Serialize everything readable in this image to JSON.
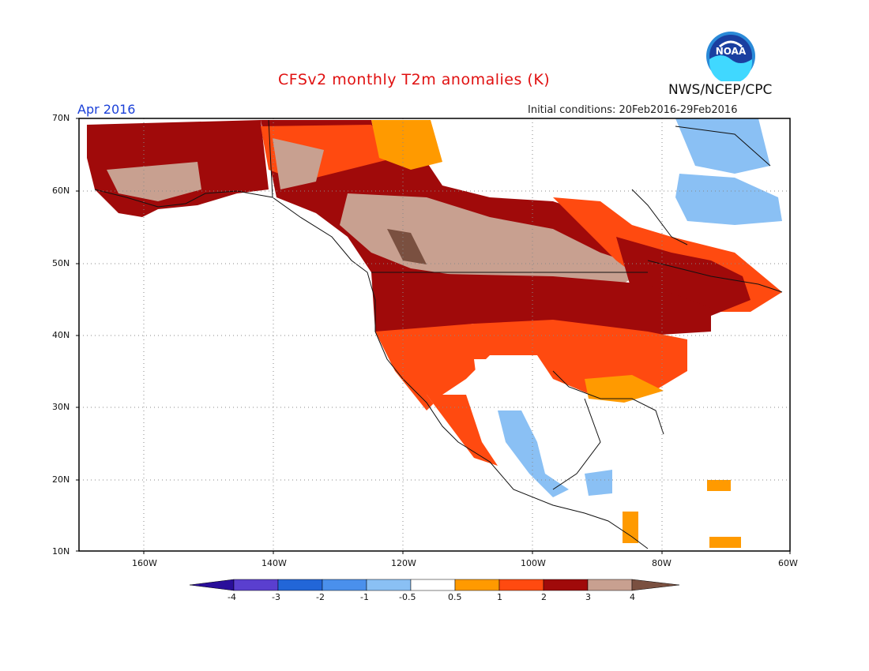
{
  "header": {
    "title": "CFSv2 monthly T2m anomalies (K)",
    "month": "Apr 2016",
    "initial_conditions": "Initial conditions: 20Feb2016-29Feb2016",
    "agency": "NWS/NCEP/CPC",
    "logo_text": "NOAA"
  },
  "map": {
    "projection": "latitude-longitude",
    "lon_range": [
      -170,
      -60
    ],
    "lat_range": [
      10,
      70
    ],
    "gridlines": "dotted",
    "y_ticks": [
      "70N",
      "60N",
      "50N",
      "40N",
      "30N",
      "20N",
      "10N"
    ],
    "x_ticks": [
      "160W",
      "140W",
      "120W",
      "100W",
      "80W",
      "60W"
    ]
  },
  "colorbar": {
    "labels": [
      "-4",
      "-3",
      "-2",
      "-1",
      "-0.5",
      "0.5",
      "1",
      "2",
      "3",
      "4"
    ],
    "colors": [
      "#2a0f9a",
      "#5a3fcf",
      "#2266d8",
      "#4a90ec",
      "#8ac0f4",
      "#ffffff",
      "#ff9a00",
      "#ff4a10",
      "#a00a0a",
      "#c8a090",
      "#7a5040"
    ]
  }
}
